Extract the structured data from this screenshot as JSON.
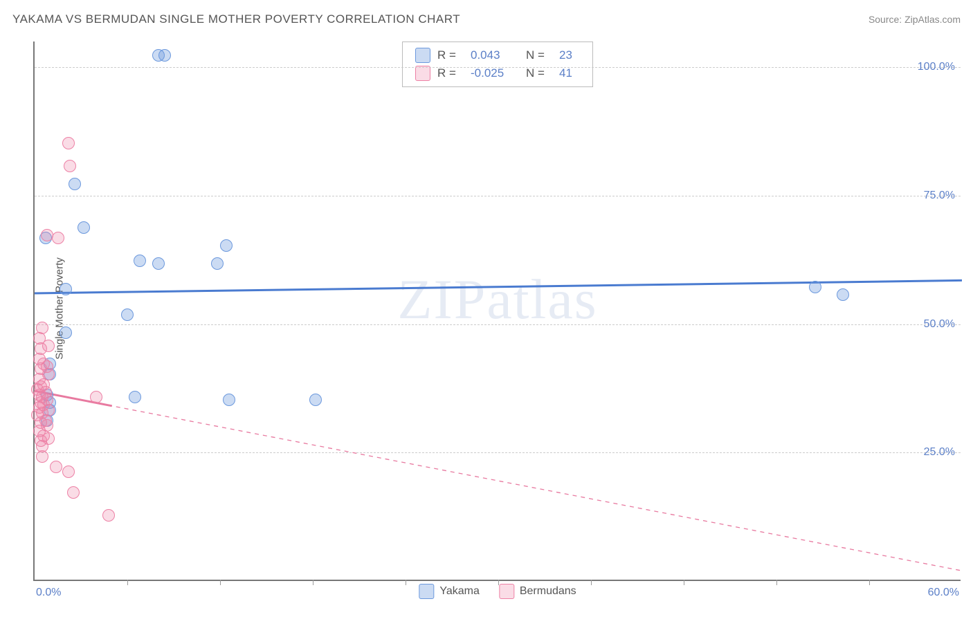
{
  "title": "YAKAMA VS BERMUDAN SINGLE MOTHER POVERTY CORRELATION CHART",
  "source": "Source: ZipAtlas.com",
  "ylabel": "Single Mother Poverty",
  "watermark": "ZIPatlas",
  "chart": {
    "type": "scatter",
    "background_color": "#ffffff",
    "axis_color": "#777777",
    "grid_color": "#cccccc",
    "label_color": "#5b7fc7",
    "title_color": "#555555",
    "xlim": [
      0,
      60
    ],
    "ylim": [
      0,
      105
    ],
    "xmin_label": "0.0%",
    "xmax_label": "60.0%",
    "yticks": [
      {
        "value": 25,
        "label": "25.0%"
      },
      {
        "value": 50,
        "label": "50.0%"
      },
      {
        "value": 75,
        "label": "75.0%"
      },
      {
        "value": 100,
        "label": "100.0%"
      }
    ],
    "xticks": [
      6,
      12,
      18,
      24,
      30,
      36,
      42,
      48,
      54
    ],
    "series": [
      {
        "id": "yakama",
        "name": "Yakama",
        "color_fill": "rgba(107,152,221,0.35)",
        "color_stroke": "#6b98dd",
        "stats": {
          "R": "0.043",
          "N": "23"
        },
        "trend": {
          "y_at_xmin": 56,
          "y_at_xmax": 58.5,
          "stroke": "#4a7bd0",
          "width": 3,
          "dashed": false
        },
        "points": [
          [
            8.0,
            102.0
          ],
          [
            8.4,
            102.0
          ],
          [
            2.6,
            77.0
          ],
          [
            3.2,
            68.5
          ],
          [
            2.0,
            56.5
          ],
          [
            0.7,
            66.5
          ],
          [
            6.8,
            62.0
          ],
          [
            8.0,
            61.5
          ],
          [
            11.8,
            61.5
          ],
          [
            12.4,
            65.0
          ],
          [
            2.0,
            48.0
          ],
          [
            6.0,
            51.5
          ],
          [
            1.0,
            42.0
          ],
          [
            1.0,
            40.0
          ],
          [
            1.0,
            34.5
          ],
          [
            6.5,
            35.5
          ],
          [
            12.6,
            35.0
          ],
          [
            18.2,
            35.0
          ],
          [
            50.5,
            57.0
          ],
          [
            52.3,
            55.5
          ],
          [
            1.0,
            33.0
          ],
          [
            0.8,
            31.0
          ],
          [
            0.8,
            36.0
          ]
        ]
      },
      {
        "id": "bermudans",
        "name": "Bermudans",
        "color_fill": "rgba(237,128,165,0.28)",
        "color_stroke": "#ed80a5",
        "stats": {
          "R": "-0.025",
          "N": "41"
        },
        "trend": {
          "y_at_xmin": 37,
          "y_at_xmax": 2,
          "stroke": "#e87aa0",
          "width": 1.3,
          "dashed": true
        },
        "points": [
          [
            2.2,
            85.0
          ],
          [
            2.3,
            80.5
          ],
          [
            0.8,
            67.0
          ],
          [
            1.5,
            66.5
          ],
          [
            0.5,
            49.0
          ],
          [
            0.3,
            47.0
          ],
          [
            0.4,
            45.0
          ],
          [
            0.9,
            45.5
          ],
          [
            0.3,
            43.0
          ],
          [
            0.6,
            42.0
          ],
          [
            0.4,
            41.0
          ],
          [
            0.8,
            41.5
          ],
          [
            0.9,
            40.0
          ],
          [
            0.3,
            39.0
          ],
          [
            0.6,
            38.0
          ],
          [
            0.4,
            37.5
          ],
          [
            0.2,
            37.0
          ],
          [
            0.7,
            36.5
          ],
          [
            0.3,
            36.0
          ],
          [
            0.5,
            35.5
          ],
          [
            0.8,
            35.0
          ],
          [
            0.4,
            34.5
          ],
          [
            0.6,
            34.0
          ],
          [
            0.3,
            33.5
          ],
          [
            0.9,
            33.0
          ],
          [
            0.5,
            32.5
          ],
          [
            0.2,
            32.0
          ],
          [
            0.7,
            31.0
          ],
          [
            0.4,
            30.5
          ],
          [
            0.8,
            30.0
          ],
          [
            0.3,
            29.0
          ],
          [
            0.6,
            28.0
          ],
          [
            0.9,
            27.5
          ],
          [
            0.4,
            27.0
          ],
          [
            0.5,
            26.0
          ],
          [
            1.4,
            22.0
          ],
          [
            2.2,
            21.0
          ],
          [
            0.5,
            24.0
          ],
          [
            2.5,
            17.0
          ],
          [
            4.8,
            12.5
          ],
          [
            4.0,
            35.5
          ]
        ]
      }
    ]
  },
  "legend_top": {
    "r_label": "R =",
    "n_label": "N ="
  }
}
